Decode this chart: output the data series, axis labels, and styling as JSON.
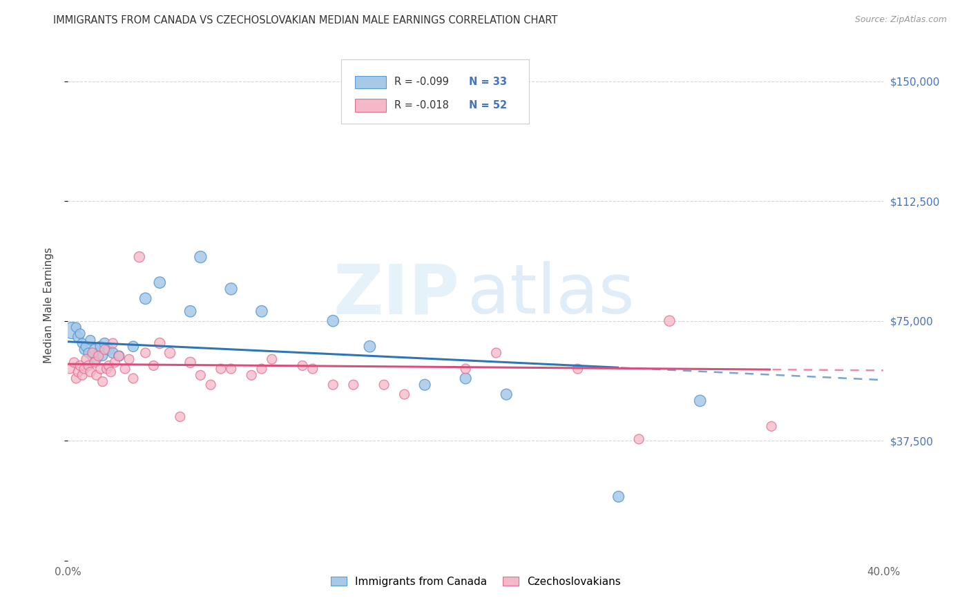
{
  "title": "IMMIGRANTS FROM CANADA VS CZECHOSLOVAKIAN MEDIAN MALE EARNINGS CORRELATION CHART",
  "source": "Source: ZipAtlas.com",
  "ylabel": "Median Male Earnings",
  "xlim": [
    0.0,
    0.4
  ],
  "ylim": [
    0,
    160000
  ],
  "yticks": [
    0,
    37500,
    75000,
    112500,
    150000
  ],
  "ytick_labels": [
    "",
    "$37,500",
    "$75,000",
    "$112,500",
    "$150,000"
  ],
  "xticks": [
    0.0,
    0.1,
    0.2,
    0.3,
    0.4
  ],
  "xtick_labels": [
    "0.0%",
    "",
    "",
    "",
    "40.0%"
  ],
  "watermark": "ZIPatlas",
  "blue_color": "#a8c8e8",
  "pink_color": "#f4b8c8",
  "blue_edge_color": "#5b9bd5",
  "pink_edge_color": "#e07090",
  "blue_line_color": "#2e75b6",
  "pink_line_color": "#d94f7a",
  "legend_label_blue": "Immigrants from Canada",
  "legend_label_pink": "Czechoslovakians",
  "blue_x": [
    0.002,
    0.004,
    0.005,
    0.006,
    0.007,
    0.008,
    0.009,
    0.01,
    0.011,
    0.012,
    0.013,
    0.014,
    0.015,
    0.016,
    0.017,
    0.018,
    0.02,
    0.022,
    0.025,
    0.032,
    0.038,
    0.045,
    0.06,
    0.065,
    0.08,
    0.095,
    0.13,
    0.148,
    0.175,
    0.195,
    0.215,
    0.27,
    0.31
  ],
  "blue_y": [
    72000,
    73000,
    70000,
    71000,
    68000,
    66000,
    67000,
    65000,
    69000,
    64000,
    66000,
    63000,
    65000,
    67000,
    64000,
    68000,
    66000,
    65000,
    64000,
    67000,
    82000,
    87000,
    78000,
    95000,
    85000,
    78000,
    75000,
    67000,
    55000,
    57000,
    52000,
    20000,
    50000
  ],
  "blue_size": [
    300,
    100,
    120,
    100,
    100,
    100,
    120,
    100,
    100,
    120,
    120,
    100,
    100,
    120,
    100,
    120,
    120,
    120,
    120,
    120,
    140,
    140,
    140,
    150,
    150,
    140,
    140,
    140,
    130,
    130,
    130,
    130,
    140
  ],
  "pink_x": [
    0.001,
    0.003,
    0.004,
    0.005,
    0.006,
    0.007,
    0.008,
    0.009,
    0.01,
    0.011,
    0.012,
    0.013,
    0.014,
    0.015,
    0.016,
    0.017,
    0.018,
    0.019,
    0.02,
    0.021,
    0.022,
    0.023,
    0.025,
    0.028,
    0.03,
    0.032,
    0.035,
    0.038,
    0.042,
    0.045,
    0.05,
    0.055,
    0.06,
    0.065,
    0.07,
    0.075,
    0.08,
    0.09,
    0.095,
    0.1,
    0.115,
    0.12,
    0.13,
    0.14,
    0.155,
    0.165,
    0.195,
    0.21,
    0.25,
    0.28,
    0.295,
    0.345
  ],
  "pink_y": [
    60000,
    62000,
    57000,
    59000,
    61000,
    58000,
    60000,
    63000,
    61000,
    59000,
    65000,
    62000,
    58000,
    64000,
    60000,
    56000,
    66000,
    60000,
    61000,
    59000,
    68000,
    62000,
    64000,
    60000,
    63000,
    57000,
    95000,
    65000,
    61000,
    68000,
    65000,
    45000,
    62000,
    58000,
    55000,
    60000,
    60000,
    58000,
    60000,
    63000,
    61000,
    60000,
    55000,
    55000,
    55000,
    52000,
    60000,
    65000,
    60000,
    38000,
    75000,
    42000
  ],
  "pink_size": [
    100,
    100,
    100,
    100,
    100,
    100,
    100,
    100,
    100,
    100,
    100,
    100,
    100,
    100,
    100,
    100,
    100,
    100,
    100,
    100,
    100,
    100,
    100,
    100,
    100,
    100,
    120,
    100,
    100,
    120,
    120,
    100,
    120,
    100,
    100,
    100,
    100,
    100,
    100,
    100,
    100,
    100,
    100,
    100,
    100,
    100,
    100,
    100,
    100,
    100,
    120,
    100
  ],
  "axis_color": "#4472c4",
  "title_color": "#333333",
  "grid_color": "#cccccc",
  "background_color": "#ffffff",
  "blue_trendline_end_solid": 0.27,
  "pink_trendline_end_solid": 0.345,
  "blue_intercept": 68500,
  "blue_slope": -30000,
  "pink_intercept": 61500,
  "pink_slope": -5000
}
